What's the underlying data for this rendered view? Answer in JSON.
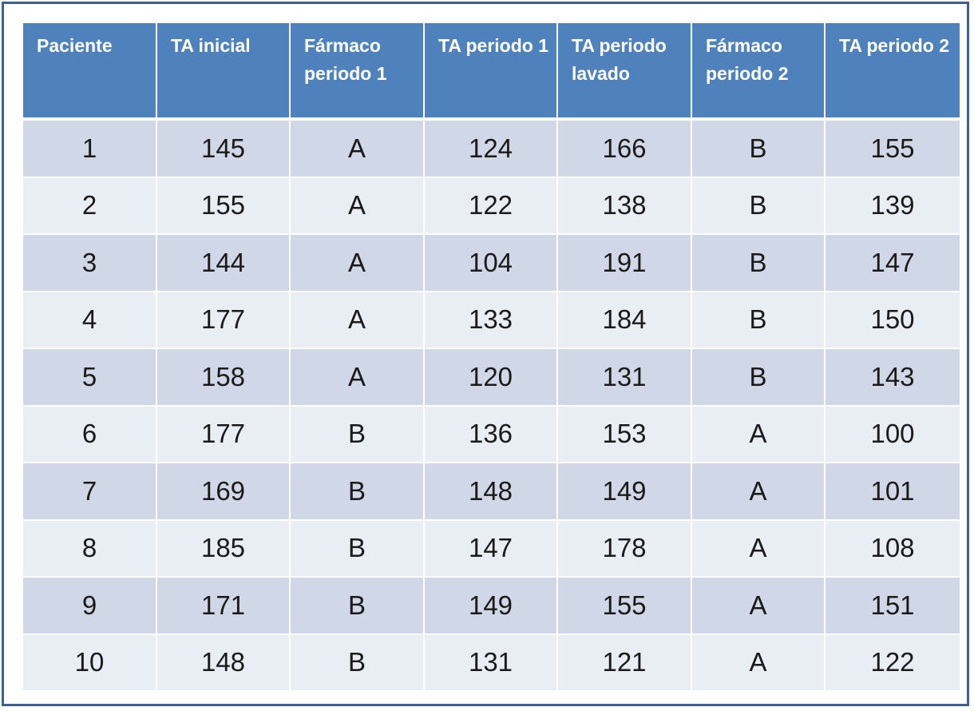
{
  "headers": [
    "Paciente",
    "TA inicial",
    "Fármaco periodo 1",
    "TA periodo 1",
    "TA periodo lavado",
    "Fármaco periodo 2",
    "TA periodo 2"
  ],
  "rows": [
    [
      "1",
      "145",
      "A",
      "124",
      "166",
      "B",
      "155"
    ],
    [
      "2",
      "155",
      "A",
      "122",
      "138",
      "B",
      "139"
    ],
    [
      "3",
      "144",
      "A",
      "104",
      "191",
      "B",
      "147"
    ],
    [
      "4",
      "177",
      "A",
      "133",
      "184",
      "B",
      "150"
    ],
    [
      "5",
      "158",
      "A",
      "120",
      "131",
      "B",
      "143"
    ],
    [
      "6",
      "177",
      "B",
      "136",
      "153",
      "A",
      "100"
    ],
    [
      "7",
      "169",
      "B",
      "148",
      "149",
      "A",
      "101"
    ],
    [
      "8",
      "185",
      "B",
      "147",
      "178",
      "A",
      "108"
    ],
    [
      "9",
      "171",
      "B",
      "149",
      "155",
      "A",
      "151"
    ],
    [
      "10",
      "148",
      "B",
      "131",
      "121",
      "A",
      "122"
    ]
  ],
  "colors": {
    "header_bg": "#4f81bd",
    "row_odd_bg": "#d0d8e8",
    "row_even_bg": "#e9edf4",
    "frame_border": "#3f5f8f"
  }
}
